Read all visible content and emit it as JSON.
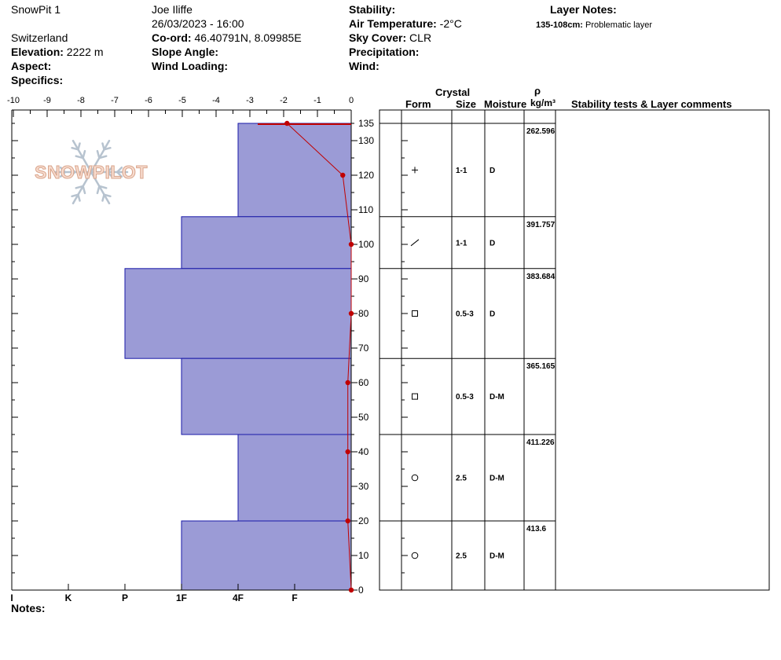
{
  "header": {
    "pit_name": "SnowPit 1",
    "observer": "Joe Iliffe",
    "datetime": "26/03/2023 - 16:00",
    "country": "Switzerland",
    "elevation_label": "Elevation:",
    "elevation_value": "2222 m",
    "coord_label": "Co-ord:",
    "coord_value": "46.40791N, 8.09985E",
    "aspect_label": "Aspect:",
    "aspect_value": "",
    "slope_label": "Slope Angle:",
    "slope_value": "",
    "specifics_label": "Specifics:",
    "wind_loading_label": "Wind Loading:",
    "stability_label": "Stability:",
    "stability_value": "",
    "air_temp_label": "Air Temperature:",
    "air_temp_value": "-2°C",
    "sky_label": "Sky Cover:",
    "sky_value": "CLR",
    "precip_label": "Precipitation:",
    "wind_label": "Wind:",
    "layer_notes_label": "Layer Notes:",
    "layer_note_range": "135-108cm:",
    "layer_note_text": "Problematic layer"
  },
  "logo_text": "SNOWPILOT",
  "notes_label": "Notes:",
  "table_headers": {
    "crystal": "Crystal",
    "form": "Form",
    "size": "Size",
    "moisture": "Moisture",
    "rho": "ρ",
    "density_unit": "kg/m³",
    "comments": "Stability tests & Layer comments"
  },
  "chart_data": {
    "type": "snow_profile",
    "temp_axis": {
      "ticks": [
        "-10",
        "-9",
        "-8",
        "-7",
        "-6",
        "-5",
        "-4",
        "-3",
        "-2",
        "-1",
        "0"
      ],
      "range": [
        -10,
        0
      ]
    },
    "height_axis": {
      "ticks": [
        "135",
        "130",
        "120",
        "110",
        "100",
        "90",
        "80",
        "70",
        "60",
        "50",
        "40",
        "30",
        "20",
        "10",
        "0"
      ],
      "range": [
        0,
        135
      ]
    },
    "hardness_axis": {
      "labels": [
        "I",
        "K",
        "P",
        "1F",
        "4F",
        "F"
      ],
      "levels": {
        "F": 1,
        "4F": 2,
        "1F": 3,
        "P": 4,
        "K": 5,
        "I": 6
      }
    },
    "hardness_layers": [
      {
        "top": 135,
        "bottom": 108,
        "hardness": "4F"
      },
      {
        "top": 108,
        "bottom": 93,
        "hardness": "1F"
      },
      {
        "top": 93,
        "bottom": 67,
        "hardness": "P"
      },
      {
        "top": 67,
        "bottom": 45,
        "hardness": "1F"
      },
      {
        "top": 45,
        "bottom": 20,
        "hardness": "4F"
      },
      {
        "top": 20,
        "bottom": 0,
        "hardness": "1F"
      }
    ],
    "temperature_profile": [
      {
        "height": 135,
        "temp": -1.9
      },
      {
        "height": 120,
        "temp": -0.25
      },
      {
        "height": 100,
        "temp": 0
      },
      {
        "height": 80,
        "temp": 0
      },
      {
        "height": 60,
        "temp": -0.1
      },
      {
        "height": 40,
        "temp": -0.1
      },
      {
        "height": 20,
        "temp": -0.1
      },
      {
        "height": 0,
        "temp": 0
      }
    ],
    "layers": [
      {
        "top": 135,
        "bottom": 108,
        "form": "+",
        "size": "1-1",
        "moisture": "D",
        "density": "262.596"
      },
      {
        "top": 108,
        "bottom": 93,
        "form": "slash",
        "size": "1-1",
        "moisture": "D",
        "density": "391.757"
      },
      {
        "top": 93,
        "bottom": 67,
        "form": "square",
        "size": "0.5-3",
        "moisture": "D",
        "density": "383.684"
      },
      {
        "top": 67,
        "bottom": 45,
        "form": "square",
        "size": "0.5-3",
        "moisture": "D-M",
        "density": "365.165"
      },
      {
        "top": 45,
        "bottom": 20,
        "form": "circle",
        "size": "2.5",
        "moisture": "D-M",
        "density": "411.226"
      },
      {
        "top": 20,
        "bottom": 0,
        "form": "circle",
        "size": "2.5",
        "moisture": "D-M",
        "density": "413.6"
      }
    ],
    "colors": {
      "hardness_fill": "#9b9bd6",
      "hardness_stroke": "#1a1aa8",
      "temperature": "#c00000"
    }
  }
}
